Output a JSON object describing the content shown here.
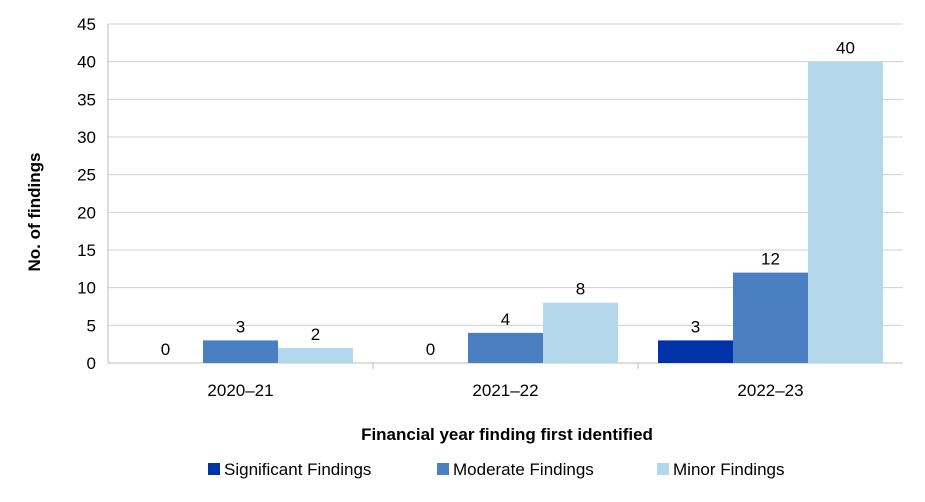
{
  "chart_data": {
    "type": "bar",
    "categories": [
      "2020–21",
      "2021–22",
      "2022–23"
    ],
    "series": [
      {
        "name": "Significant Findings",
        "values": [
          0,
          0,
          3
        ],
        "color": "#0033a8"
      },
      {
        "name": "Moderate Findings",
        "values": [
          3,
          4,
          12
        ],
        "color": "#4a7fc1"
      },
      {
        "name": "Minor Findings",
        "values": [
          2,
          8,
          40
        ],
        "color": "#b3d8ec"
      }
    ],
    "title": "",
    "xlabel": "Financial year finding first identified",
    "ylabel": "No. of findings",
    "ylim": [
      0,
      45
    ],
    "yticks": [
      0,
      5,
      10,
      15,
      20,
      25,
      30,
      35,
      40,
      45
    ],
    "grid": true,
    "legend": "bottom"
  }
}
